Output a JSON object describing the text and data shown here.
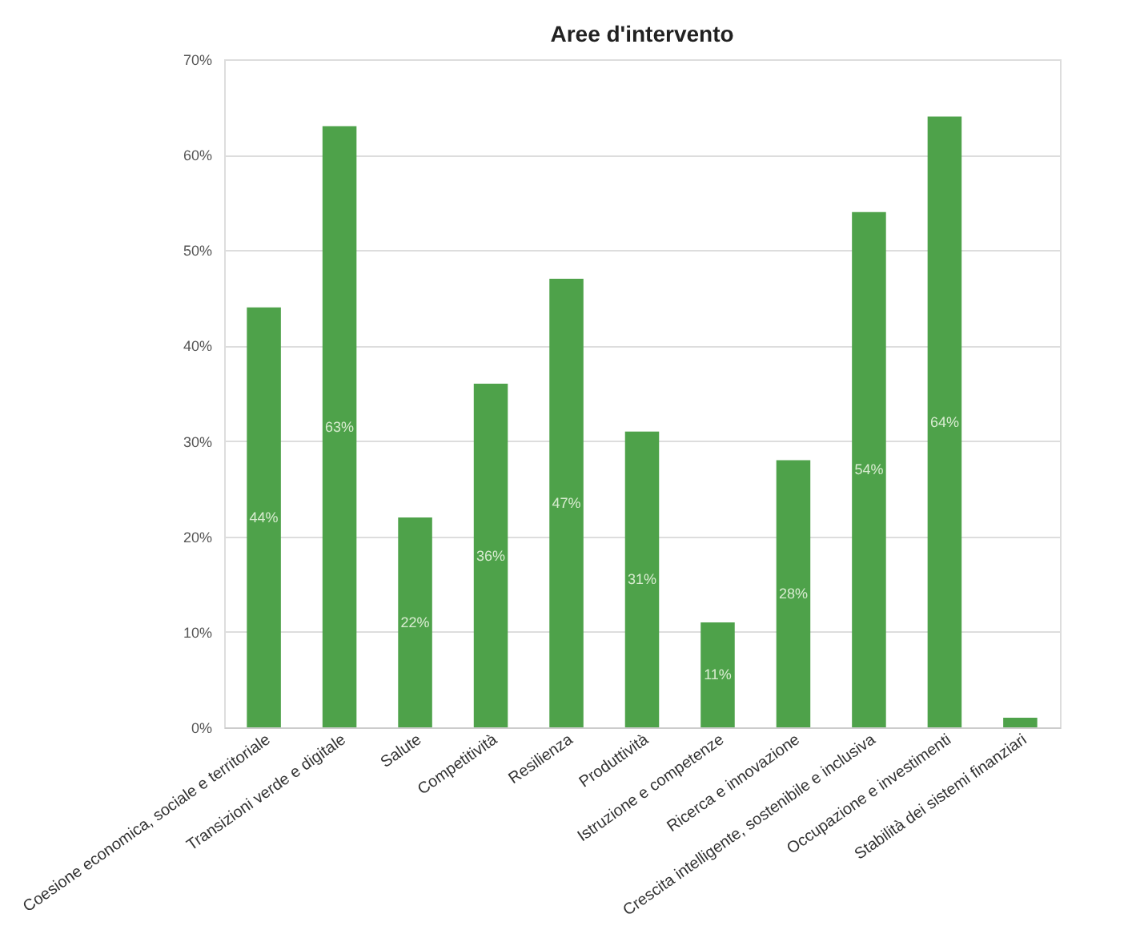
{
  "chart_data": {
    "type": "bar",
    "title": "Aree d'intervento",
    "categories": [
      "Coesione economica, sociale e territoriale",
      "Transizioni verde e digitale",
      "Salute",
      "Competitività",
      "Resilienza",
      "Produttività",
      "Istruzione e competenze",
      "Ricerca e innovazione",
      "Crescita intelligente, sostenibile e inclusiva",
      "Occupazione e investimenti",
      "Stabilità dei sistemi finanziari"
    ],
    "values": [
      44,
      63,
      22,
      36,
      47,
      31,
      11,
      28,
      54,
      64,
      1
    ],
    "value_labels": [
      "44%",
      "63%",
      "22%",
      "36%",
      "47%",
      "31%",
      "11%",
      "28%",
      "54%",
      "64%",
      null
    ],
    "color": "#4ea24a",
    "ylim": [
      0,
      70
    ],
    "yticks": [
      {
        "value": 0,
        "label": "0%"
      },
      {
        "value": 10,
        "label": "10%"
      },
      {
        "value": 20,
        "label": "20%"
      },
      {
        "value": 30,
        "label": "30%"
      },
      {
        "value": 40,
        "label": "40%"
      },
      {
        "value": 50,
        "label": "50%"
      },
      {
        "value": 60,
        "label": "60%"
      },
      {
        "value": 70,
        "label": "70%"
      }
    ],
    "grid": "y"
  }
}
